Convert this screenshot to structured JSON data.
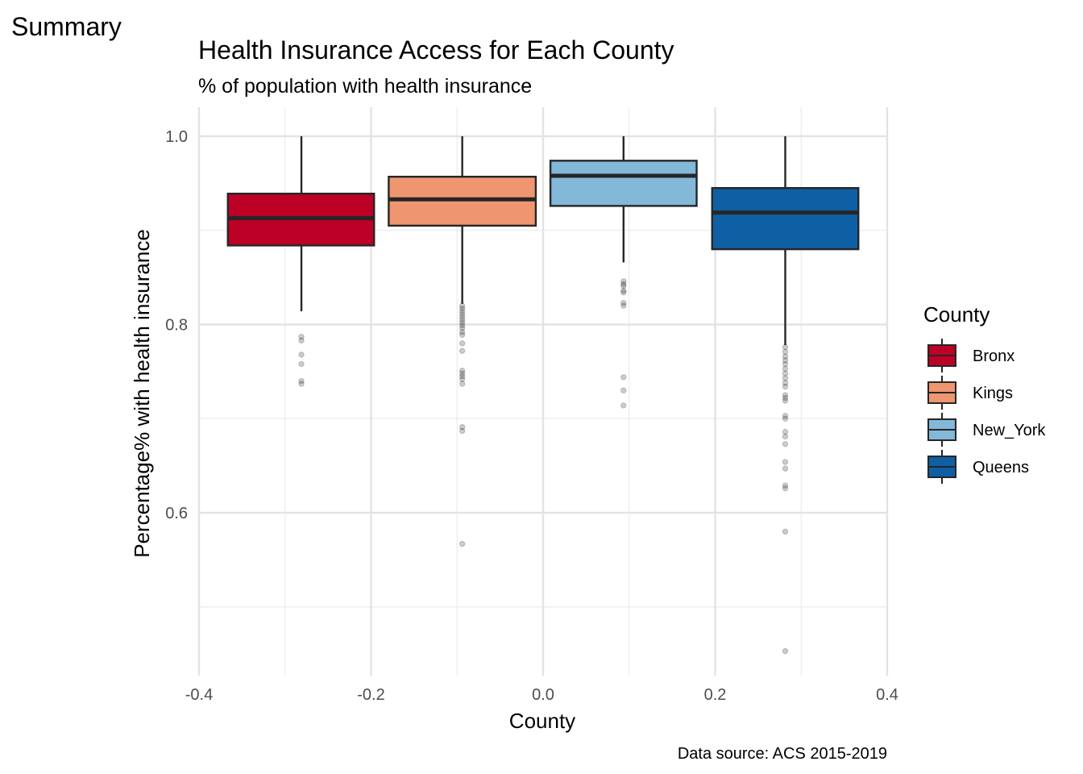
{
  "page": {
    "header": "Summary"
  },
  "chart_data": {
    "type": "box",
    "title": "Health Insurance Access for Each County",
    "subtitle": "% of population with health insurance",
    "xlabel": "County",
    "ylabel": "Percentage% with health insurance",
    "caption": "Data source: ACS 2015-2019",
    "xlim": [
      -0.4,
      0.4
    ],
    "ylim": [
      0.43,
      1.02
    ],
    "x_ticks": [
      -0.4,
      -0.2,
      0.0,
      0.2,
      0.4
    ],
    "x_tick_labels": [
      "-0.4",
      "-0.2",
      "0.0",
      "0.2",
      "0.4"
    ],
    "y_ticks": [
      0.6,
      0.8,
      1.0
    ],
    "y_tick_labels": [
      "0.6",
      "0.8",
      "1.0"
    ],
    "y_minor_ticks": [
      0.5,
      0.7,
      0.9
    ],
    "x_minor_ticks": [
      -0.3,
      -0.1,
      0.1,
      0.3
    ],
    "grid": true,
    "legend": {
      "title": "County",
      "position": "right"
    },
    "series": [
      {
        "name": "Bronx",
        "color": "#BD0026",
        "x_center": -0.281,
        "x_min": -0.3665,
        "x_max": -0.1965,
        "whisker_low": 0.814,
        "q1": 0.884,
        "median": 0.913,
        "q3": 0.939,
        "whisker_high": 1.0,
        "outliers": [
          0.787,
          0.783,
          0.768,
          0.758,
          0.74,
          0.737
        ]
      },
      {
        "name": "Kings",
        "color": "#EF9670",
        "x_center": -0.094,
        "x_min": -0.1795,
        "x_max": -0.0085,
        "whisker_low": 0.822,
        "q1": 0.905,
        "median": 0.933,
        "q3": 0.957,
        "whisker_high": 1.0,
        "outliers": [
          0.82,
          0.817,
          0.814,
          0.811,
          0.808,
          0.805,
          0.802,
          0.799,
          0.796,
          0.792,
          0.789,
          0.78,
          0.772,
          0.751,
          0.748,
          0.745,
          0.742,
          0.737,
          0.691,
          0.687,
          0.567
        ]
      },
      {
        "name": "New_York",
        "color": "#82B8D8",
        "x_center": 0.0935,
        "x_min": 0.0085,
        "x_max": 0.1785,
        "whisker_low": 0.866,
        "q1": 0.926,
        "median": 0.958,
        "q3": 0.974,
        "whisker_high": 1.0,
        "outliers": [
          0.846,
          0.843,
          0.841,
          0.836,
          0.834,
          0.823,
          0.82,
          0.744,
          0.73,
          0.714
        ]
      },
      {
        "name": "Queens",
        "color": "#0E5FA3",
        "x_center": 0.2815,
        "x_min": 0.1965,
        "x_max": 0.3665,
        "whisker_low": 0.778,
        "q1": 0.88,
        "median": 0.919,
        "q3": 0.945,
        "whisker_high": 1.0,
        "outliers": [
          0.776,
          0.771,
          0.766,
          0.762,
          0.758,
          0.753,
          0.748,
          0.743,
          0.738,
          0.734,
          0.725,
          0.722,
          0.719,
          0.703,
          0.7,
          0.686,
          0.681,
          0.673,
          0.654,
          0.647,
          0.629,
          0.626,
          0.58,
          0.453
        ]
      }
    ]
  }
}
